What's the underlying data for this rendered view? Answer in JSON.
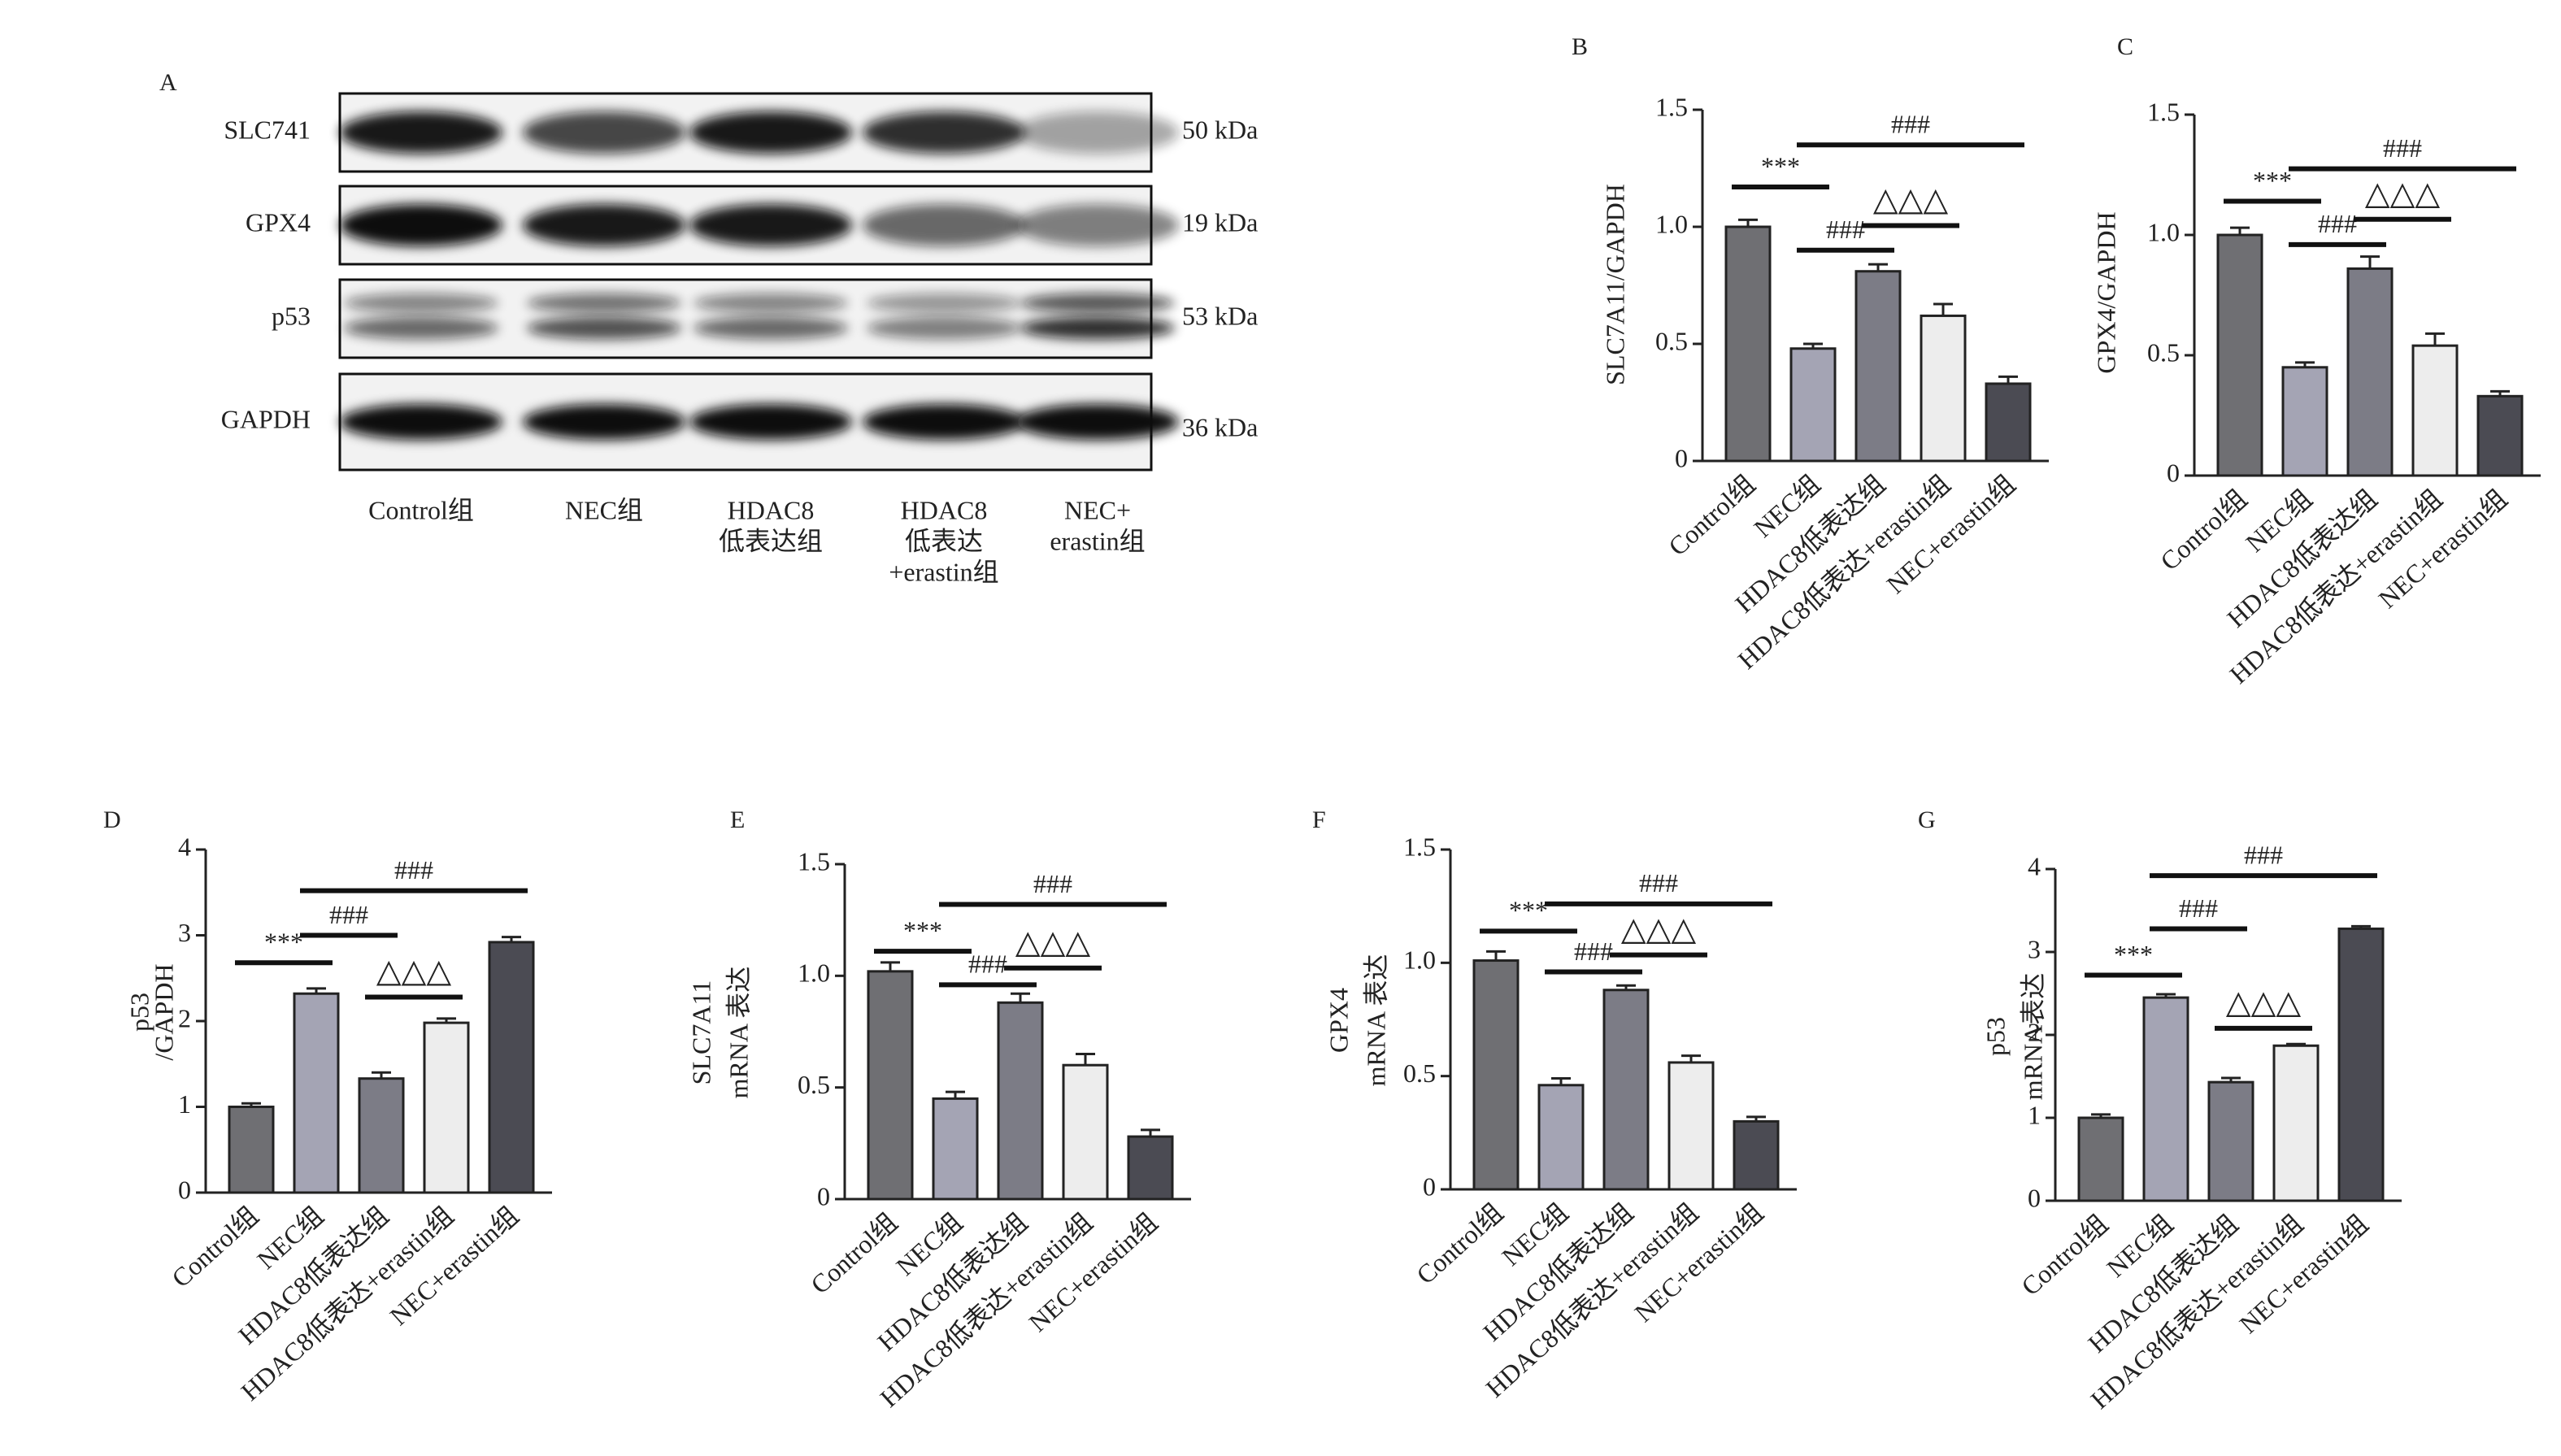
{
  "blot": {
    "label": "A",
    "proteins": [
      "SLC741",
      "GPX4",
      "p53",
      "GAPDH"
    ],
    "sizes": [
      "50 kDa",
      "19 kDa",
      "53 kDa",
      "36 kDa"
    ],
    "groups": [
      [
        "Control组"
      ],
      [
        "NEC组"
      ],
      [
        "HDAC8",
        "低表达组"
      ],
      [
        "HDAC8",
        "低表达",
        "+erastin组"
      ],
      [
        "NEC+",
        "erastin组"
      ]
    ]
  },
  "chart_data": [
    {
      "type": "bar",
      "panel": "B",
      "y_label": [
        "SLC7A11/GAPDH"
      ],
      "categories": [
        "Control组",
        "NEC组",
        "HDAC8低表达组",
        "HDAC8低表达+erastin组",
        "NEC+erastin组"
      ],
      "values": [
        1.0,
        0.48,
        0.81,
        0.62,
        0.33
      ],
      "errors": [
        0.03,
        0.02,
        0.03,
        0.05,
        0.03
      ],
      "colors": [
        "#6f6f73",
        "#a4a4b4",
        "#7c7c86",
        "#ededed",
        "#4b4b53"
      ],
      "ylim": [
        0,
        1.5
      ],
      "yticks": [
        0,
        0.5,
        {
          "value": 1,
          "label": "1.0"
        },
        1.5
      ],
      "annotations": [
        "***",
        "###",
        "###",
        "△△△"
      ]
    },
    {
      "type": "bar",
      "panel": "C",
      "y_label": [
        "GPX4/GAPDH"
      ],
      "categories": [
        "Control组",
        "NEC组",
        "HDAC8低表达组",
        "HDAC8低表达+erastin组",
        "NEC+erastin组"
      ],
      "values": [
        1.0,
        0.45,
        0.86,
        0.54,
        0.33
      ],
      "errors": [
        0.03,
        0.02,
        0.05,
        0.05,
        0.02
      ],
      "colors": [
        "#6f6f73",
        "#a4a4b4",
        "#7c7c86",
        "#ededed",
        "#4b4b53"
      ],
      "ylim": [
        0,
        1.5
      ],
      "yticks": [
        0,
        0.5,
        {
          "value": 1,
          "label": "1.0"
        },
        1.5
      ],
      "annotations": [
        "***",
        "###",
        "###",
        "△△△"
      ]
    },
    {
      "type": "bar",
      "panel": "D",
      "y_label": [
        "p53",
        "/GAPDH"
      ],
      "categories": [
        "Control组",
        "NEC组",
        "HDAC8低表达组",
        "HDAC8低表达+erastin组",
        "NEC+erastin组"
      ],
      "values": [
        1.0,
        2.32,
        1.33,
        1.98,
        2.92
      ],
      "errors": [
        0.04,
        0.06,
        0.07,
        0.05,
        0.06
      ],
      "colors": [
        "#6f6f73",
        "#a4a4b4",
        "#7c7c86",
        "#ededed",
        "#4b4b53"
      ],
      "ylim": [
        0,
        4
      ],
      "yticks": [
        0,
        1,
        2,
        3,
        4
      ],
      "annotations": [
        "***",
        "###",
        "###",
        "△△△"
      ]
    },
    {
      "type": "bar",
      "panel": "E",
      "y_label": [
        "SLC7A11",
        "mRNA 表达"
      ],
      "categories": [
        "Control组",
        "NEC组",
        "HDAC8低表达组",
        "HDAC8低表达+erastin组",
        "NEC+erastin组"
      ],
      "values": [
        1.02,
        0.45,
        0.88,
        0.6,
        0.28
      ],
      "errors": [
        0.04,
        0.03,
        0.04,
        0.05,
        0.03
      ],
      "colors": [
        "#6f6f73",
        "#a4a4b4",
        "#7c7c86",
        "#ededed",
        "#4b4b53"
      ],
      "ylim": [
        0,
        1.5
      ],
      "yticks": [
        0,
        0.5,
        {
          "value": 1,
          "label": "1.0"
        },
        1.5
      ],
      "annotations": [
        "***",
        "###",
        "###",
        "△△△"
      ]
    },
    {
      "type": "bar",
      "panel": "F",
      "y_label": [
        "GPX4",
        "mRNA 表达"
      ],
      "categories": [
        "Control组",
        "NEC组",
        "HDAC8低表达组",
        "HDAC8低表达+erastin组",
        "NEC+erastin组"
      ],
      "values": [
        1.01,
        0.46,
        0.88,
        0.56,
        0.3
      ],
      "errors": [
        0.04,
        0.03,
        0.02,
        0.03,
        0.02
      ],
      "colors": [
        "#6f6f73",
        "#a4a4b4",
        "#7c7c86",
        "#ededed",
        "#4b4b53"
      ],
      "ylim": [
        0,
        1.5
      ],
      "yticks": [
        0,
        0.5,
        {
          "value": 1,
          "label": "1.0"
        },
        1.5
      ],
      "annotations": [
        "***",
        "###",
        "###",
        "△△△"
      ]
    },
    {
      "type": "bar",
      "panel": "G",
      "y_label": [
        "p53",
        "mRNA表达"
      ],
      "categories": [
        "Control组",
        "NEC组",
        "HDAC8低表达组",
        "HDAC8低表达+erastin组",
        "NEC+erastin组"
      ],
      "values": [
        1.0,
        2.45,
        1.43,
        1.87,
        3.28
      ],
      "errors": [
        0.04,
        0.04,
        0.05,
        0.02,
        0.03
      ],
      "colors": [
        "#6f6f73",
        "#a4a4b4",
        "#7c7c86",
        "#ededed",
        "#4b4b53"
      ],
      "ylim": [
        0,
        4
      ],
      "yticks": [
        0,
        1,
        2,
        3,
        4
      ],
      "annotations": [
        "***",
        "###",
        "###",
        "△△△"
      ]
    }
  ]
}
